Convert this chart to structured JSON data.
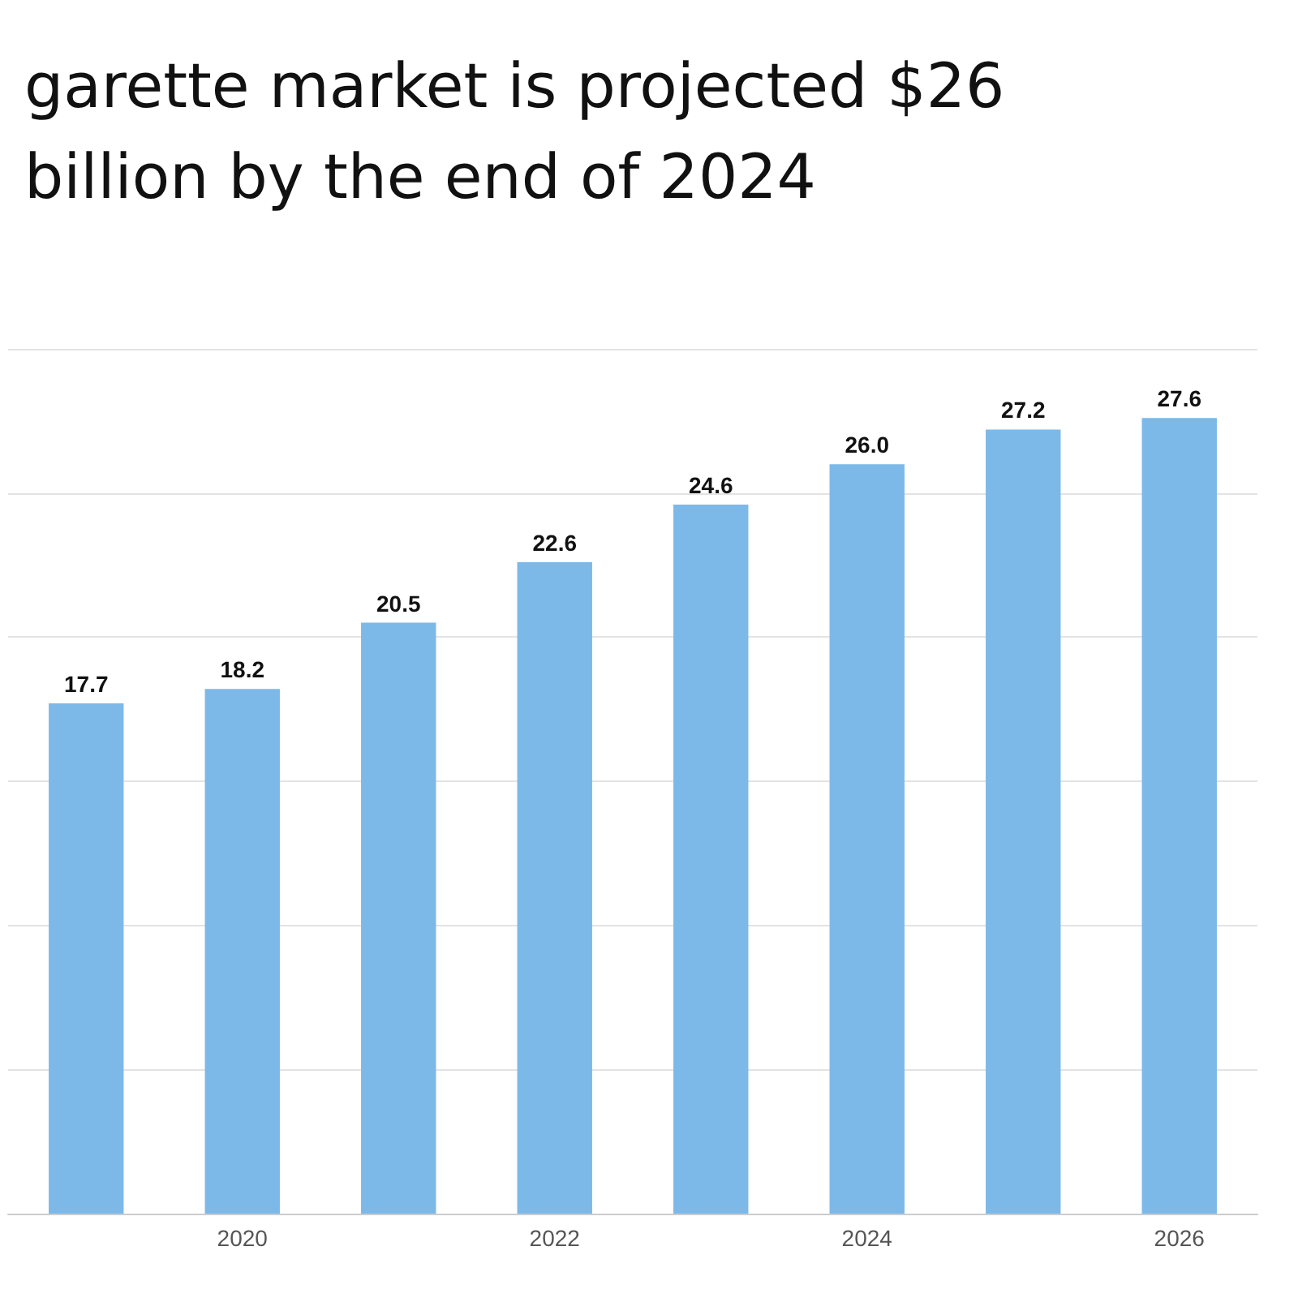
{
  "chart_data": {
    "type": "bar",
    "title": "garette market is projected $26 billion by the end of 2024",
    "categories": [
      null,
      "2020",
      null,
      "2022",
      null,
      "2024",
      null,
      "2026"
    ],
    "values": [
      17.7,
      18.2,
      20.5,
      22.6,
      24.6,
      26.0,
      27.2,
      27.6
    ],
    "color": "#7cb9e8",
    "ylim": [
      0,
      30
    ],
    "yticks": [
      {
        "value": 0,
        "label": null
      },
      {
        "value": 5,
        "label": null
      },
      {
        "value": 10,
        "label": null
      },
      {
        "value": 15,
        "label": null
      },
      {
        "value": 20,
        "label": null
      },
      {
        "value": 25,
        "label": null
      },
      {
        "value": 30,
        "label": null
      }
    ],
    "value_labels": [
      "17.7",
      "18.2",
      "20.5",
      "22.6",
      "24.6",
      "26.0",
      "27.2",
      "27.6"
    ],
    "grid": "y",
    "tick_labels": "x"
  }
}
